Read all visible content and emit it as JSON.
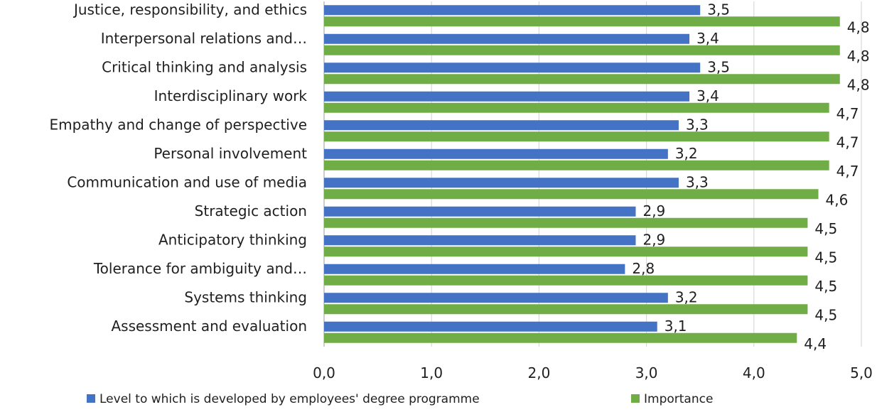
{
  "chart_data": {
    "type": "bar",
    "orientation": "horizontal",
    "categories": [
      "Justice, responsibility, and ethics",
      "Interpersonal relations and…",
      "Critical thinking and analysis",
      "Interdisciplinary work",
      "Empathy and change of perspective",
      "Personal involvement",
      "Communication and use of media",
      "Strategic action",
      "Anticipatory thinking",
      "Tolerance for ambiguity and…",
      "Systems thinking",
      "Assessment and evaluation"
    ],
    "series": [
      {
        "name": "Level to which is developed by employees' degree programme",
        "color": "#4472c4",
        "values": [
          3.5,
          3.4,
          3.5,
          3.4,
          3.3,
          3.2,
          3.3,
          2.9,
          2.9,
          2.8,
          3.2,
          3.1
        ],
        "labels": [
          "3,5",
          "3,4",
          "3,5",
          "3,4",
          "3,3",
          "3,2",
          "3,3",
          "2,9",
          "2,9",
          "2,8",
          "3,2",
          "3,1"
        ]
      },
      {
        "name": "Importance",
        "color": "#70ad47",
        "values": [
          4.8,
          4.8,
          4.8,
          4.7,
          4.7,
          4.7,
          4.6,
          4.5,
          4.5,
          4.5,
          4.5,
          4.4
        ],
        "labels": [
          "4,8",
          "4,8",
          "4,8",
          "4,7",
          "4,7",
          "4,7",
          "4,6",
          "4,5",
          "4,5",
          "4,5",
          "4,5",
          "4,4"
        ]
      }
    ],
    "xlim": [
      0,
      5
    ],
    "x_ticks": [
      "0,0",
      "1,0",
      "2,0",
      "3,0",
      "4,0",
      "5,0"
    ],
    "grid": true,
    "legend_position": "bottom"
  }
}
